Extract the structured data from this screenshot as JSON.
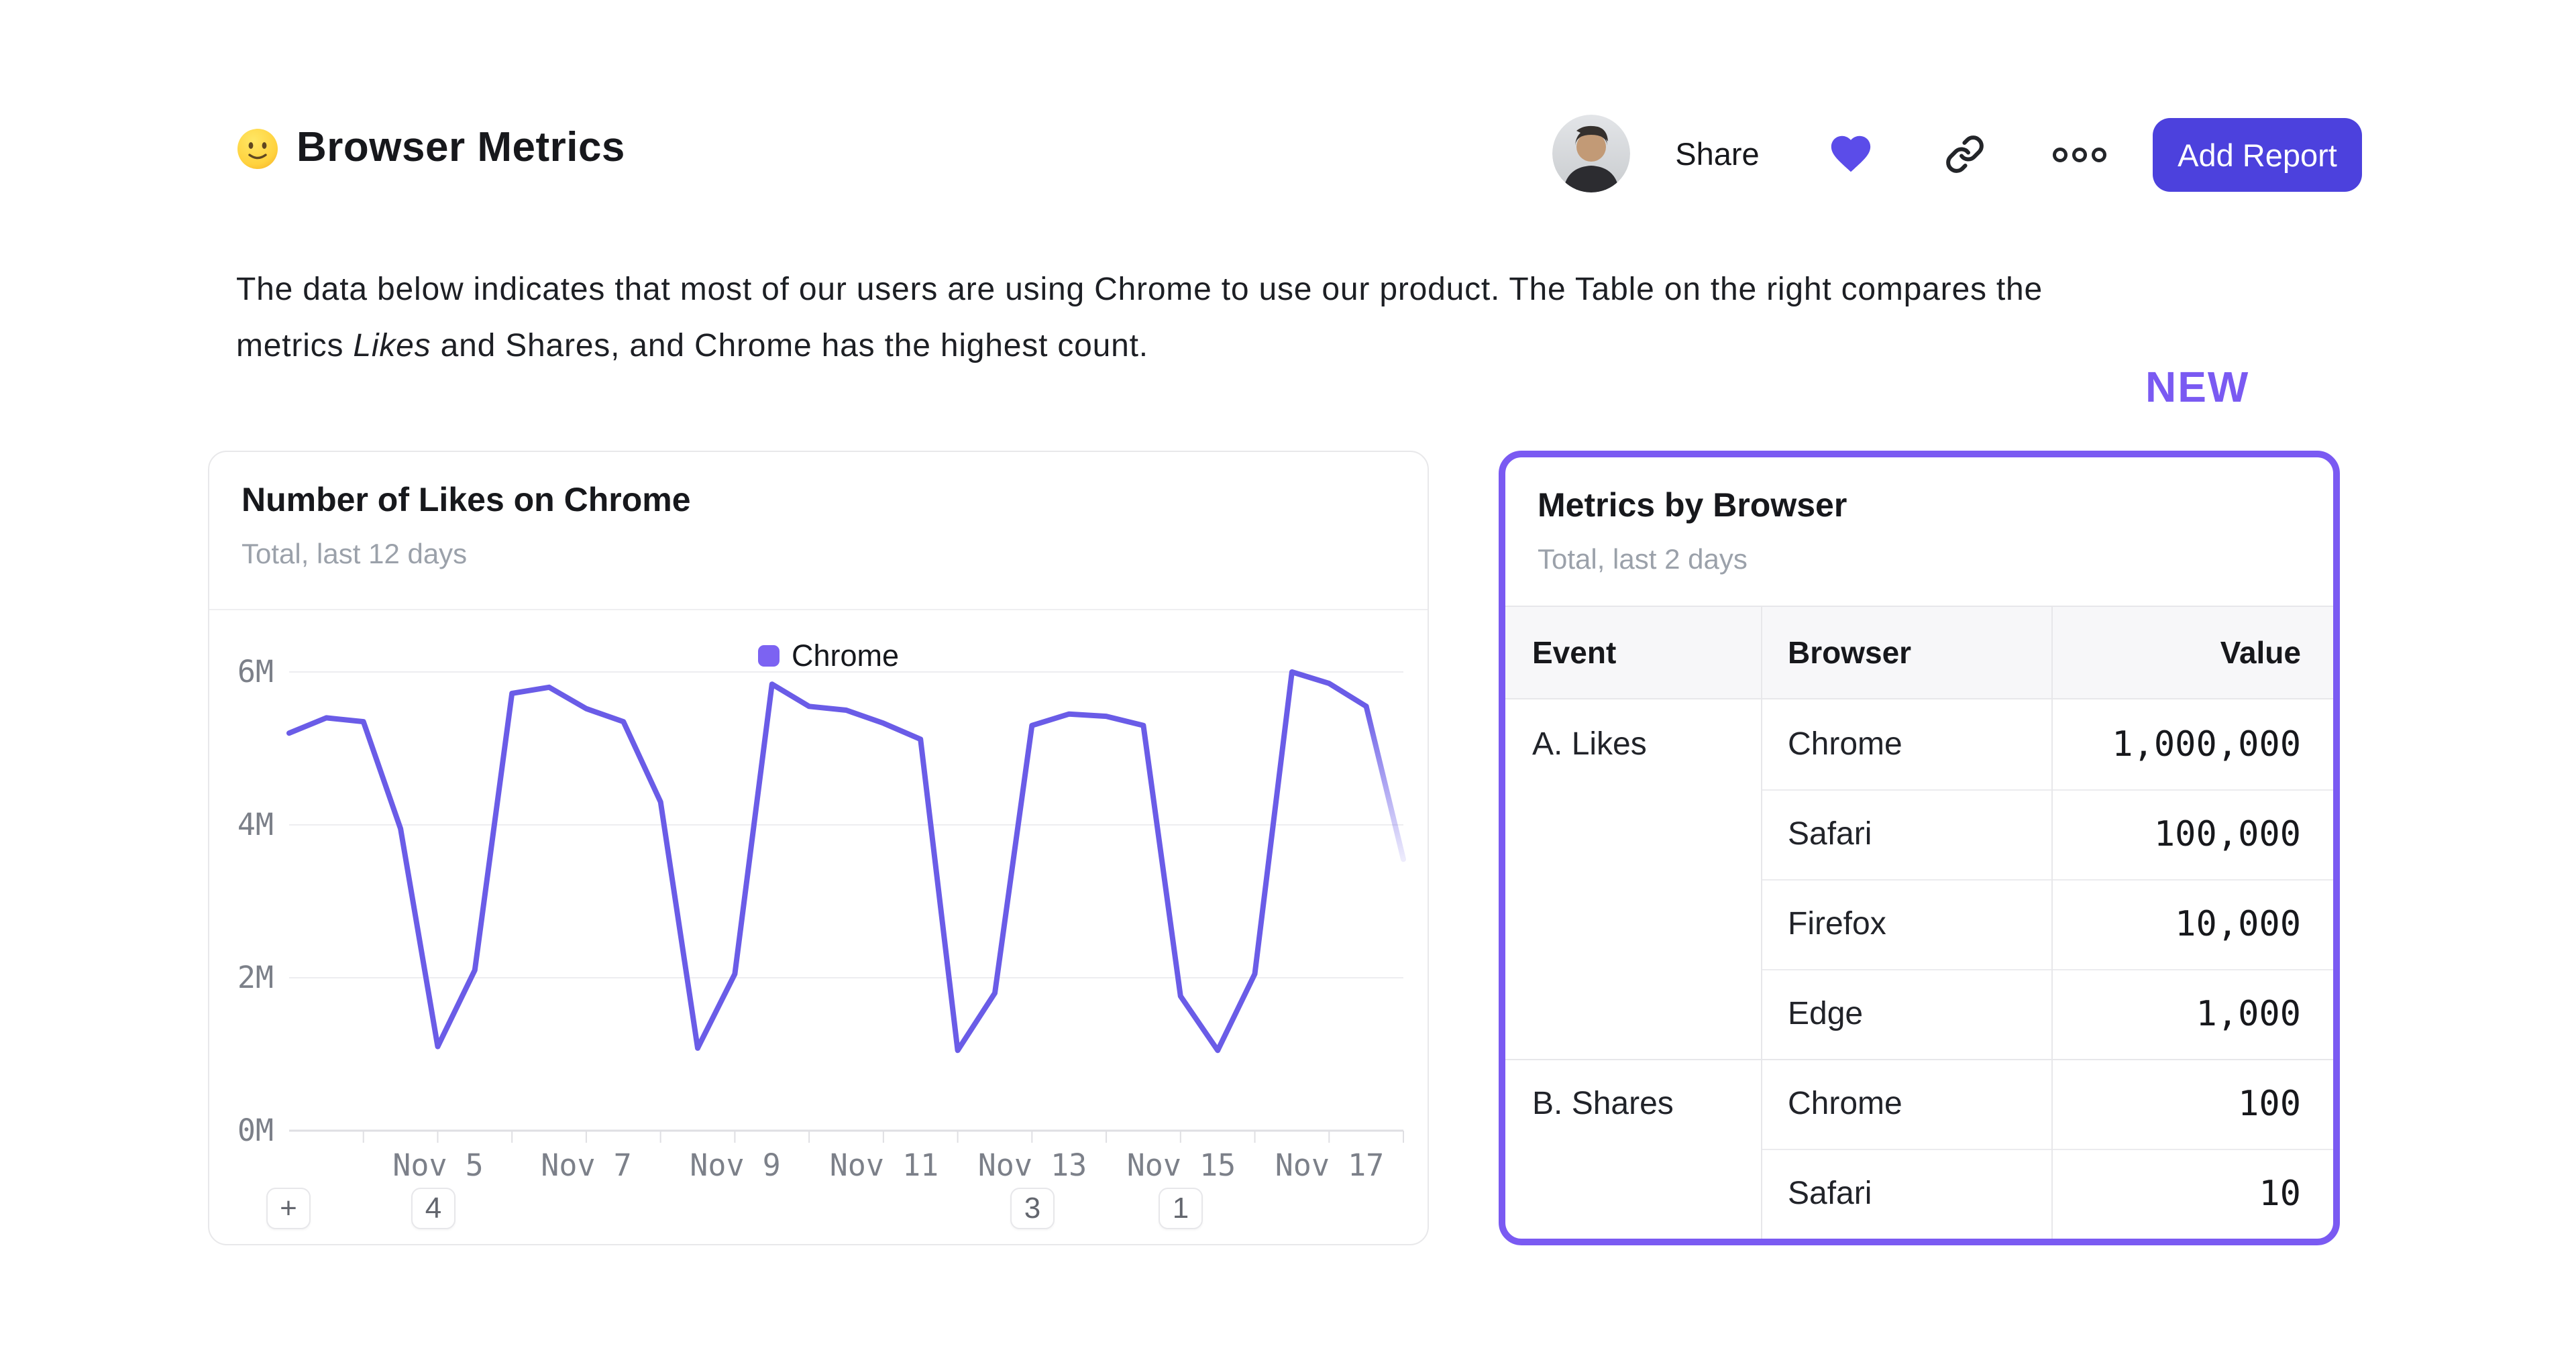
{
  "header": {
    "title": "Browser Metrics",
    "emoji_name": "slightly-smiling-face",
    "share_label": "Share",
    "add_report_label": "Add Report"
  },
  "description": {
    "line1": "The data below indicates that most of our users are using Chrome to use our product. The Table on the right compares the",
    "line2_before_italic": "metrics ",
    "italic_word": "Likes",
    "line2_after_italic": " and Shares, and Chrome has the highest count."
  },
  "new_badge": "NEW",
  "likes_card": {
    "title": "Number of Likes on Chrome",
    "subtitle": "Total, last 12 days",
    "legend_label": "Chrome",
    "toolbar": {
      "plus_label": "+",
      "markers": [
        "4",
        "3",
        "1"
      ]
    }
  },
  "chart_data": {
    "type": "line",
    "title": "Number of Likes on Chrome",
    "subtitle": "Total, last 12 days",
    "unit": "likes",
    "ylim": [
      0,
      6000000
    ],
    "y_tick_labels": [
      "0M",
      "2M",
      "4M",
      "6M"
    ],
    "x_tick_labels": [
      "Nov 5",
      "Nov 7",
      "Nov 9",
      "Nov 11",
      "Nov 13",
      "Nov 15",
      "Nov 17"
    ],
    "x_axis": "November days, half-day sampling",
    "x_days": [
      3,
      3.5,
      4,
      4.5,
      5,
      5.5,
      6,
      6.5,
      7,
      7.5,
      8,
      8.5,
      9,
      9.5,
      10,
      10.5,
      11,
      11.5,
      12,
      12.5,
      13,
      13.5,
      14,
      14.5,
      15,
      15.5,
      16,
      16.5,
      17,
      17.5,
      18
    ],
    "series": [
      {
        "name": "Chrome",
        "color": "#6a5ce7",
        "values": [
          5200000,
          5400000,
          5350000,
          3950000,
          1100000,
          2100000,
          5720000,
          5800000,
          5520000,
          5350000,
          4300000,
          1080000,
          2050000,
          5840000,
          5550000,
          5500000,
          5330000,
          5120000,
          1050000,
          1800000,
          5300000,
          5450000,
          5420000,
          5300000,
          1760000,
          1050000,
          2050000,
          6000000,
          5850000,
          5550000,
          3550000
        ]
      }
    ],
    "faded_tail_segments": 1,
    "grid": "horizontal",
    "legend_position": "top-center",
    "annotations": [
      {
        "label": "4",
        "at": "Nov 5"
      },
      {
        "label": "3",
        "at": "Nov 13"
      },
      {
        "label": "1",
        "at": "Nov 15"
      }
    ]
  },
  "metrics_card": {
    "title": "Metrics by Browser",
    "subtitle": "Total, last 2 days",
    "columns": [
      "Event",
      "Browser",
      "Value"
    ],
    "rows": [
      {
        "event": "A. Likes",
        "browser": "Chrome",
        "value": "1,000,000"
      },
      {
        "event": "",
        "browser": "Safari",
        "value": "100,000"
      },
      {
        "event": "",
        "browser": "Firefox",
        "value": "10,000"
      },
      {
        "event": "",
        "browser": "Edge",
        "value": "1,000"
      },
      {
        "event": "B. Shares",
        "browser": "Chrome",
        "value": "100"
      },
      {
        "event": "",
        "browser": "Safari",
        "value": "10"
      }
    ]
  },
  "colors": {
    "accent_line": "#6a5ce7",
    "accent_border": "#7a5af2",
    "accent_button": "#4c41dd",
    "heart": "#5b4ce9",
    "subtitle_gray": "#9ba1aa",
    "axis_gray": "#7c8089"
  }
}
